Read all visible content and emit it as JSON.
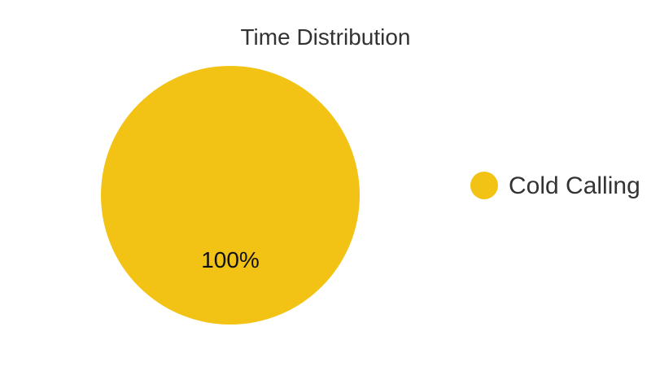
{
  "chart_data": {
    "type": "pie",
    "title": "Time Distribution",
    "legend_position": "right",
    "slices": [
      {
        "name": "Cold Calling",
        "value": 100,
        "label": "100%",
        "color": "#F2C314"
      }
    ]
  }
}
